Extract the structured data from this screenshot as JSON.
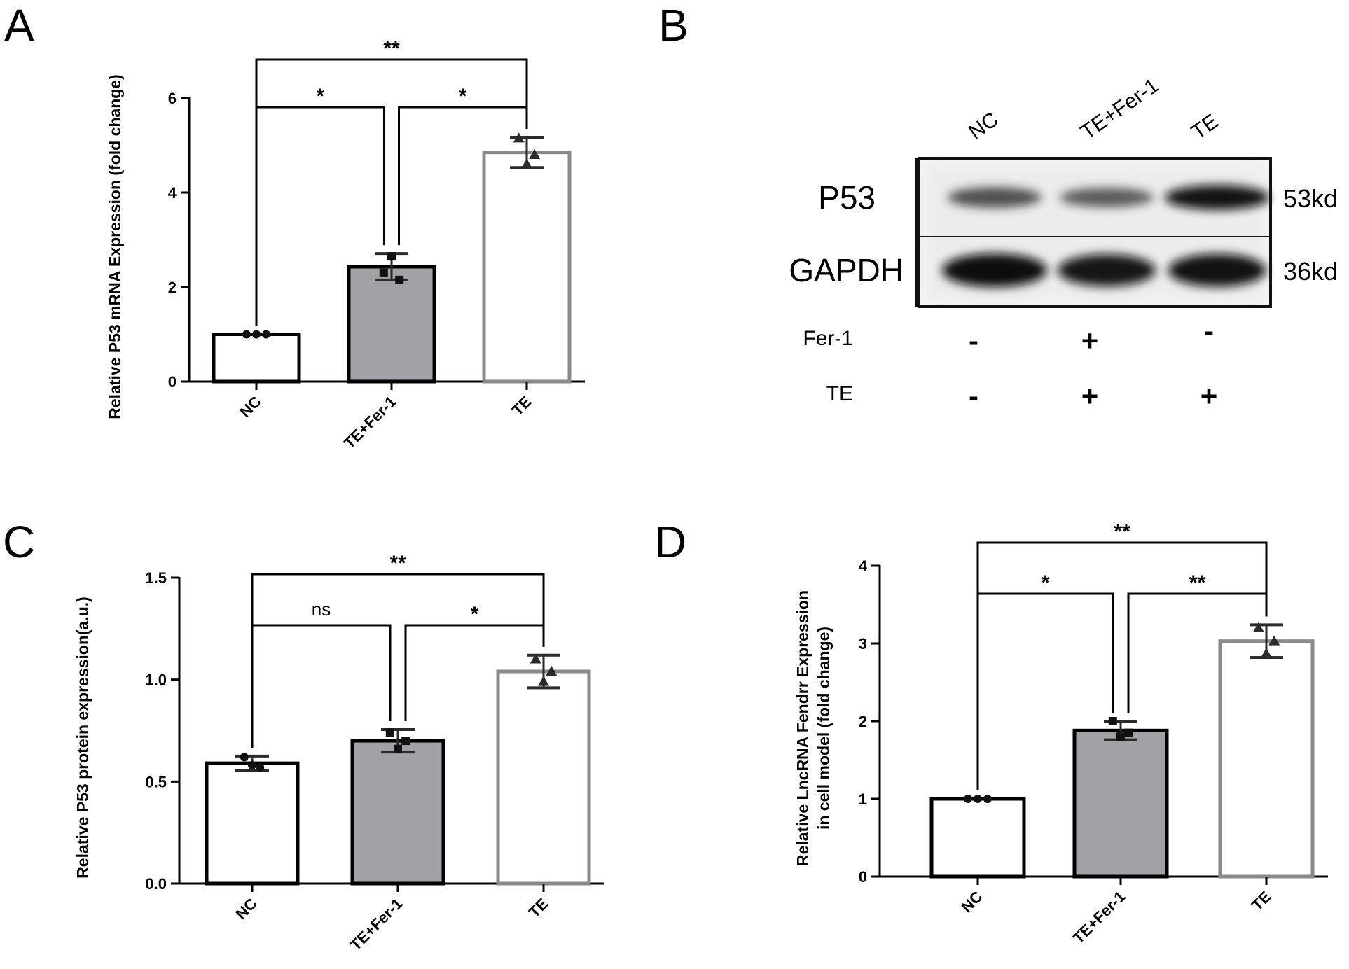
{
  "panels": {
    "A": "A",
    "B": "B",
    "C": "C",
    "D": "D"
  },
  "chart_data": [
    {
      "id": "A",
      "type": "bar",
      "ylabel": "Relative P53 mRNA Expression (fold change)",
      "categories": [
        "NC",
        "TE+Fer-1",
        "TE"
      ],
      "values": [
        1.0,
        2.43,
        4.85
      ],
      "errors": [
        0.0,
        0.28,
        0.32
      ],
      "points": [
        [
          1.0,
          1.0,
          1.0
        ],
        [
          2.3,
          2.65,
          2.15
        ],
        [
          5.15,
          4.6,
          4.8
        ]
      ],
      "markers": [
        "circle",
        "square",
        "triangle"
      ],
      "bar_fill": [
        "#ffffff",
        "#a2a2a6",
        "#ffffff"
      ],
      "bar_stroke": [
        "#000000",
        "#000000",
        "#8a8a8a"
      ],
      "ylim": [
        0,
        6
      ],
      "yticks": [
        "0",
        "2",
        "4",
        "6"
      ],
      "ytick_values": [
        0,
        2,
        4,
        6
      ],
      "significance": [
        {
          "from": 0,
          "to": 2,
          "label": "**",
          "level": 0
        },
        {
          "from": 0,
          "to": 1,
          "label": "*",
          "level": 1
        },
        {
          "from": 1,
          "to": 2,
          "label": "*",
          "level": 1
        }
      ]
    },
    {
      "id": "C",
      "type": "bar",
      "ylabel": "Relative P53 protein expression(a.u.)",
      "categories": [
        "NC",
        "TE+Fer-1",
        "TE"
      ],
      "values": [
        0.59,
        0.7,
        1.04
      ],
      "errors": [
        0.035,
        0.055,
        0.08
      ],
      "points": [
        [
          0.62,
          0.58,
          0.57
        ],
        [
          0.74,
          0.66,
          0.7
        ],
        [
          1.1,
          0.99,
          1.04
        ]
      ],
      "markers": [
        "circle",
        "square",
        "triangle"
      ],
      "bar_fill": [
        "#ffffff",
        "#a2a2a6",
        "#ffffff"
      ],
      "bar_stroke": [
        "#000000",
        "#000000",
        "#8a8a8a"
      ],
      "ylim": [
        0,
        1.5
      ],
      "yticks": [
        "0.0",
        "0.5",
        "1.0",
        "1.5"
      ],
      "ytick_values": [
        0,
        0.5,
        1.0,
        1.5
      ],
      "significance": [
        {
          "from": 0,
          "to": 2,
          "label": "**",
          "level": 0
        },
        {
          "from": 0,
          "to": 1,
          "label": "ns",
          "level": 1
        },
        {
          "from": 1,
          "to": 2,
          "label": "*",
          "level": 1
        }
      ]
    },
    {
      "id": "D",
      "type": "bar",
      "ylabel": [
        "Relative LncRNA Fendrr Expression",
        "in cell model (fold change)"
      ],
      "categories": [
        "NC",
        "TE+Fer-1",
        "TE"
      ],
      "values": [
        1.0,
        1.88,
        3.03
      ],
      "errors": [
        0.0,
        0.12,
        0.21
      ],
      "points": [
        [
          1.0,
          1.0,
          1.0
        ],
        [
          2.0,
          1.8,
          1.85
        ],
        [
          3.2,
          2.87,
          3.03
        ]
      ],
      "markers": [
        "circle",
        "square",
        "triangle"
      ],
      "bar_fill": [
        "#ffffff",
        "#a2a2a6",
        "#ffffff"
      ],
      "bar_stroke": [
        "#000000",
        "#000000",
        "#8a8a8a"
      ],
      "ylim": [
        0,
        4
      ],
      "yticks": [
        "0",
        "1",
        "2",
        "3",
        "4"
      ],
      "ytick_values": [
        0,
        1,
        2,
        3,
        4
      ],
      "significance": [
        {
          "from": 0,
          "to": 2,
          "label": "**",
          "level": 0
        },
        {
          "from": 0,
          "to": 1,
          "label": "*",
          "level": 1
        },
        {
          "from": 1,
          "to": 2,
          "label": "**",
          "level": 1
        }
      ]
    }
  ],
  "blot": {
    "lanes": [
      "NC",
      "TE+Fer-1",
      "TE"
    ],
    "rows": [
      {
        "label": "P53",
        "size": "53kd",
        "intensity": [
          0.55,
          0.45,
          0.95
        ]
      },
      {
        "label": "GAPDH",
        "size": "36kd",
        "intensity": [
          1.0,
          0.9,
          0.95
        ]
      }
    ],
    "conditions": [
      {
        "label": "Fer-1",
        "signs": [
          "-",
          "+",
          "-"
        ]
      },
      {
        "label": "TE",
        "signs": [
          "-",
          "+",
          "+"
        ]
      }
    ]
  }
}
